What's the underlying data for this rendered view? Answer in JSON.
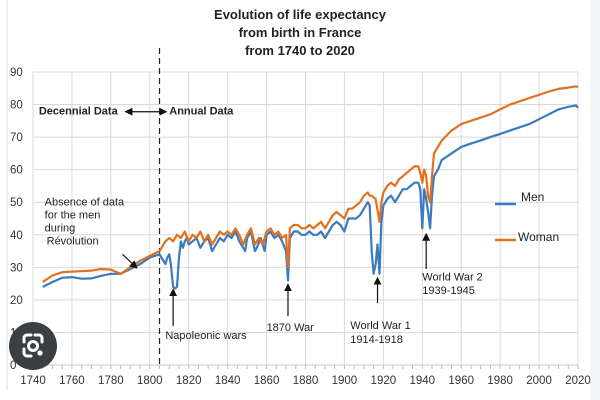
{
  "chart_data": {
    "type": "line",
    "title": [
      "Evolution of life expectancy",
      "from birth in France",
      "from 1740 to 2020"
    ],
    "xlabel": "",
    "ylabel": "",
    "xlim": [
      1740,
      2020
    ],
    "ylim": [
      0,
      90
    ],
    "x_ticks": [
      "1740",
      "1760",
      "1780",
      "1800",
      "1820",
      "1840",
      "1860",
      "1880",
      "1900",
      "1920",
      "1940",
      "1960",
      "1980",
      "2000",
      "2020"
    ],
    "y_ticks": [
      "0",
      "10",
      "20",
      "30",
      "40",
      "50",
      "60",
      "70",
      "80",
      "90"
    ],
    "grid": true,
    "legend_position": "right",
    "series": [
      {
        "name": "Men",
        "color": "#3a7bbf",
        "points": [
          [
            1745,
            24
          ],
          [
            1750,
            25.5
          ],
          [
            1755,
            26.8
          ],
          [
            1760,
            27
          ],
          [
            1765,
            26.5
          ],
          [
            1770,
            26.6
          ],
          [
            1775,
            27.4
          ],
          [
            1780,
            28
          ],
          [
            1785,
            28
          ],
          [
            1790,
            29.5
          ],
          [
            1795,
            31
          ],
          [
            1800,
            33
          ],
          [
            1805,
            34
          ],
          [
            1806,
            33
          ],
          [
            1807,
            32
          ],
          [
            1808,
            31
          ],
          [
            1809,
            33
          ],
          [
            1810,
            34
          ],
          [
            1811,
            30
          ],
          [
            1812,
            24
          ],
          [
            1813,
            23.5
          ],
          [
            1814,
            24
          ],
          [
            1815,
            33
          ],
          [
            1816,
            38
          ],
          [
            1817,
            36
          ],
          [
            1818,
            38
          ],
          [
            1819,
            39
          ],
          [
            1820,
            37
          ],
          [
            1822,
            38
          ],
          [
            1824,
            39
          ],
          [
            1826,
            36
          ],
          [
            1828,
            38
          ],
          [
            1830,
            39
          ],
          [
            1832,
            35
          ],
          [
            1834,
            37
          ],
          [
            1836,
            39
          ],
          [
            1838,
            38
          ],
          [
            1840,
            40
          ],
          [
            1842,
            39
          ],
          [
            1844,
            41
          ],
          [
            1846,
            38
          ],
          [
            1848,
            36
          ],
          [
            1849,
            35
          ],
          [
            1850,
            39
          ],
          [
            1852,
            41
          ],
          [
            1854,
            35
          ],
          [
            1855,
            36
          ],
          [
            1857,
            39
          ],
          [
            1859,
            35
          ],
          [
            1860,
            40
          ],
          [
            1862,
            41
          ],
          [
            1864,
            39
          ],
          [
            1866,
            40
          ],
          [
            1868,
            38
          ],
          [
            1870,
            35
          ],
          [
            1871,
            26
          ],
          [
            1872,
            39
          ],
          [
            1874,
            41
          ],
          [
            1876,
            41
          ],
          [
            1878,
            40
          ],
          [
            1880,
            40
          ],
          [
            1882,
            41
          ],
          [
            1884,
            40
          ],
          [
            1886,
            40
          ],
          [
            1888,
            41
          ],
          [
            1890,
            39
          ],
          [
            1892,
            41
          ],
          [
            1894,
            43
          ],
          [
            1896,
            44
          ],
          [
            1898,
            43
          ],
          [
            1900,
            41
          ],
          [
            1902,
            45
          ],
          [
            1904,
            45
          ],
          [
            1906,
            45
          ],
          [
            1908,
            46
          ],
          [
            1910,
            48
          ],
          [
            1912,
            50
          ],
          [
            1913,
            49
          ],
          [
            1914,
            35
          ],
          [
            1915,
            28
          ],
          [
            1916,
            31
          ],
          [
            1917,
            37
          ],
          [
            1918,
            28
          ],
          [
            1919,
            44
          ],
          [
            1920,
            49
          ],
          [
            1922,
            51
          ],
          [
            1924,
            52
          ],
          [
            1926,
            50
          ],
          [
            1928,
            52
          ],
          [
            1930,
            54
          ],
          [
            1932,
            54
          ],
          [
            1934,
            55
          ],
          [
            1936,
            56
          ],
          [
            1938,
            56
          ],
          [
            1939,
            54
          ],
          [
            1940,
            42
          ],
          [
            1941,
            54
          ],
          [
            1942,
            51
          ],
          [
            1943,
            47
          ],
          [
            1944,
            42
          ],
          [
            1945,
            52
          ],
          [
            1946,
            58
          ],
          [
            1948,
            60
          ],
          [
            1950,
            63
          ],
          [
            1955,
            65
          ],
          [
            1960,
            67
          ],
          [
            1965,
            68
          ],
          [
            1970,
            69
          ],
          [
            1975,
            70
          ],
          [
            1980,
            71
          ],
          [
            1985,
            72
          ],
          [
            1990,
            73
          ],
          [
            1995,
            74
          ],
          [
            2000,
            75.5
          ],
          [
            2005,
            77
          ],
          [
            2010,
            78.5
          ],
          [
            2015,
            79.3
          ],
          [
            2019,
            79.7
          ],
          [
            2020,
            79
          ]
        ]
      },
      {
        "name": "Woman",
        "color": "#e2701f",
        "points": [
          [
            1745,
            25.5
          ],
          [
            1750,
            27.5
          ],
          [
            1755,
            28.5
          ],
          [
            1760,
            28.7
          ],
          [
            1765,
            28.8
          ],
          [
            1770,
            29
          ],
          [
            1775,
            29.5
          ],
          [
            1780,
            29.3
          ],
          [
            1785,
            28
          ],
          [
            1790,
            30
          ],
          [
            1795,
            32
          ],
          [
            1800,
            33.5
          ],
          [
            1805,
            35
          ],
          [
            1806,
            36
          ],
          [
            1808,
            38
          ],
          [
            1810,
            39
          ],
          [
            1812,
            38
          ],
          [
            1814,
            40
          ],
          [
            1816,
            39
          ],
          [
            1818,
            41
          ],
          [
            1820,
            38
          ],
          [
            1822,
            40
          ],
          [
            1824,
            39
          ],
          [
            1826,
            41
          ],
          [
            1828,
            38
          ],
          [
            1830,
            40
          ],
          [
            1832,
            37
          ],
          [
            1834,
            39
          ],
          [
            1836,
            41
          ],
          [
            1838,
            40
          ],
          [
            1840,
            41
          ],
          [
            1842,
            40
          ],
          [
            1844,
            42
          ],
          [
            1846,
            40
          ],
          [
            1848,
            37
          ],
          [
            1850,
            40
          ],
          [
            1852,
            42
          ],
          [
            1854,
            37
          ],
          [
            1856,
            39
          ],
          [
            1858,
            37
          ],
          [
            1860,
            41
          ],
          [
            1862,
            42
          ],
          [
            1864,
            40
          ],
          [
            1866,
            41
          ],
          [
            1868,
            39
          ],
          [
            1870,
            40
          ],
          [
            1871,
            30
          ],
          [
            1872,
            42
          ],
          [
            1874,
            43
          ],
          [
            1876,
            43
          ],
          [
            1878,
            42
          ],
          [
            1880,
            42
          ],
          [
            1882,
            43
          ],
          [
            1884,
            42
          ],
          [
            1886,
            43
          ],
          [
            1888,
            44
          ],
          [
            1890,
            42
          ],
          [
            1892,
            44
          ],
          [
            1894,
            46
          ],
          [
            1896,
            47
          ],
          [
            1898,
            46
          ],
          [
            1900,
            45
          ],
          [
            1902,
            48
          ],
          [
            1904,
            48
          ],
          [
            1906,
            49
          ],
          [
            1908,
            50
          ],
          [
            1910,
            52
          ],
          [
            1912,
            53
          ],
          [
            1913,
            52
          ],
          [
            1914,
            52
          ],
          [
            1916,
            51
          ],
          [
            1918,
            44
          ],
          [
            1919,
            50
          ],
          [
            1920,
            53
          ],
          [
            1922,
            55
          ],
          [
            1924,
            56
          ],
          [
            1926,
            55
          ],
          [
            1928,
            57
          ],
          [
            1930,
            58
          ],
          [
            1932,
            59
          ],
          [
            1934,
            60
          ],
          [
            1936,
            61
          ],
          [
            1938,
            61
          ],
          [
            1939,
            59
          ],
          [
            1940,
            56
          ],
          [
            1941,
            60
          ],
          [
            1942,
            58
          ],
          [
            1943,
            52
          ],
          [
            1944,
            50
          ],
          [
            1945,
            58
          ],
          [
            1946,
            65
          ],
          [
            1948,
            67
          ],
          [
            1950,
            69
          ],
          [
            1955,
            72
          ],
          [
            1960,
            74
          ],
          [
            1965,
            75
          ],
          [
            1970,
            76
          ],
          [
            1975,
            77
          ],
          [
            1980,
            78.5
          ],
          [
            1985,
            80
          ],
          [
            1990,
            81
          ],
          [
            1995,
            82
          ],
          [
            2000,
            83
          ],
          [
            2005,
            84
          ],
          [
            2010,
            84.8
          ],
          [
            2015,
            85.2
          ],
          [
            2019,
            85.6
          ],
          [
            2020,
            85.3
          ]
        ]
      }
    ],
    "annotations": [
      {
        "text": "Decennial Data",
        "bold": true,
        "x": 1743,
        "y": 77
      },
      {
        "text": "Annual Data",
        "bold": true,
        "x": 1810,
        "y": 77
      },
      {
        "text": "Absence of data",
        "x": 1746,
        "y": 49
      },
      {
        "text": "for the men",
        "x": 1746,
        "y": 45
      },
      {
        "text": "during",
        "x": 1746,
        "y": 41
      },
      {
        "text": "Révolution",
        "x": 1747,
        "y": 37
      },
      {
        "text": "Napoleonic wars",
        "x": 1808,
        "y": 8
      },
      {
        "text": "1870 War",
        "x": 1860,
        "y": 10.5
      },
      {
        "text": "World War 1",
        "x": 1903,
        "y": 11
      },
      {
        "text": "1914-1918",
        "x": 1903,
        "y": 6.8
      },
      {
        "text": "World War 2",
        "x": 1940,
        "y": 26
      },
      {
        "text": "1939-1945",
        "x": 1940,
        "y": 21.8
      }
    ],
    "divider_year": 1805
  }
}
